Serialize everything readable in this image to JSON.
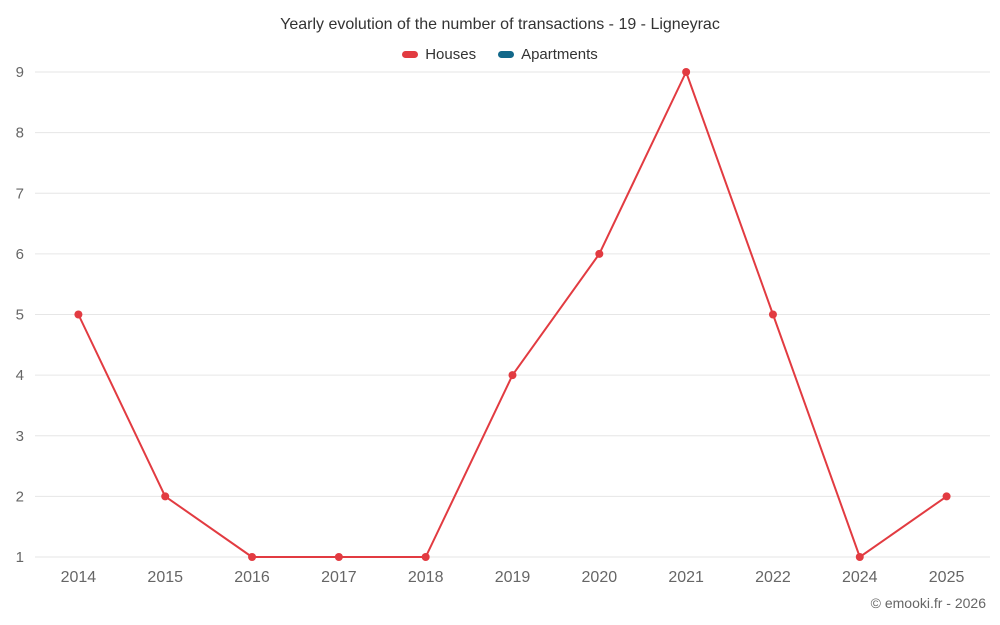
{
  "title": "Yearly evolution of the number of transactions - 19 - Ligneyrac",
  "legend": [
    {
      "label": "Houses",
      "color": "#e23b41"
    },
    {
      "label": "Apartments",
      "color": "#12688a"
    }
  ],
  "footer": "© emooki.fr - 2026",
  "colors": {
    "grid": "#e6e6e6",
    "axis_text": "#666666",
    "title_text": "#333333"
  },
  "chart_data": {
    "type": "line",
    "title": "Yearly evolution of the number of transactions - 19 - Ligneyrac",
    "categories": [
      "2014",
      "2015",
      "2016",
      "2017",
      "2018",
      "2019",
      "2020",
      "2021",
      "2022",
      "2024",
      "2025"
    ],
    "series": [
      {
        "name": "Houses",
        "color": "#e23b41",
        "values": [
          5,
          2,
          1,
          1,
          1,
          4,
          6,
          9,
          5,
          1,
          2
        ]
      },
      {
        "name": "Apartments",
        "color": "#12688a",
        "values": []
      }
    ],
    "xlabel": "",
    "ylabel": "",
    "ylim": [
      1,
      9
    ],
    "yticks": [
      1,
      2,
      3,
      4,
      5,
      6,
      7,
      8,
      9
    ],
    "grid": "horizontal",
    "legend_position": "top"
  }
}
